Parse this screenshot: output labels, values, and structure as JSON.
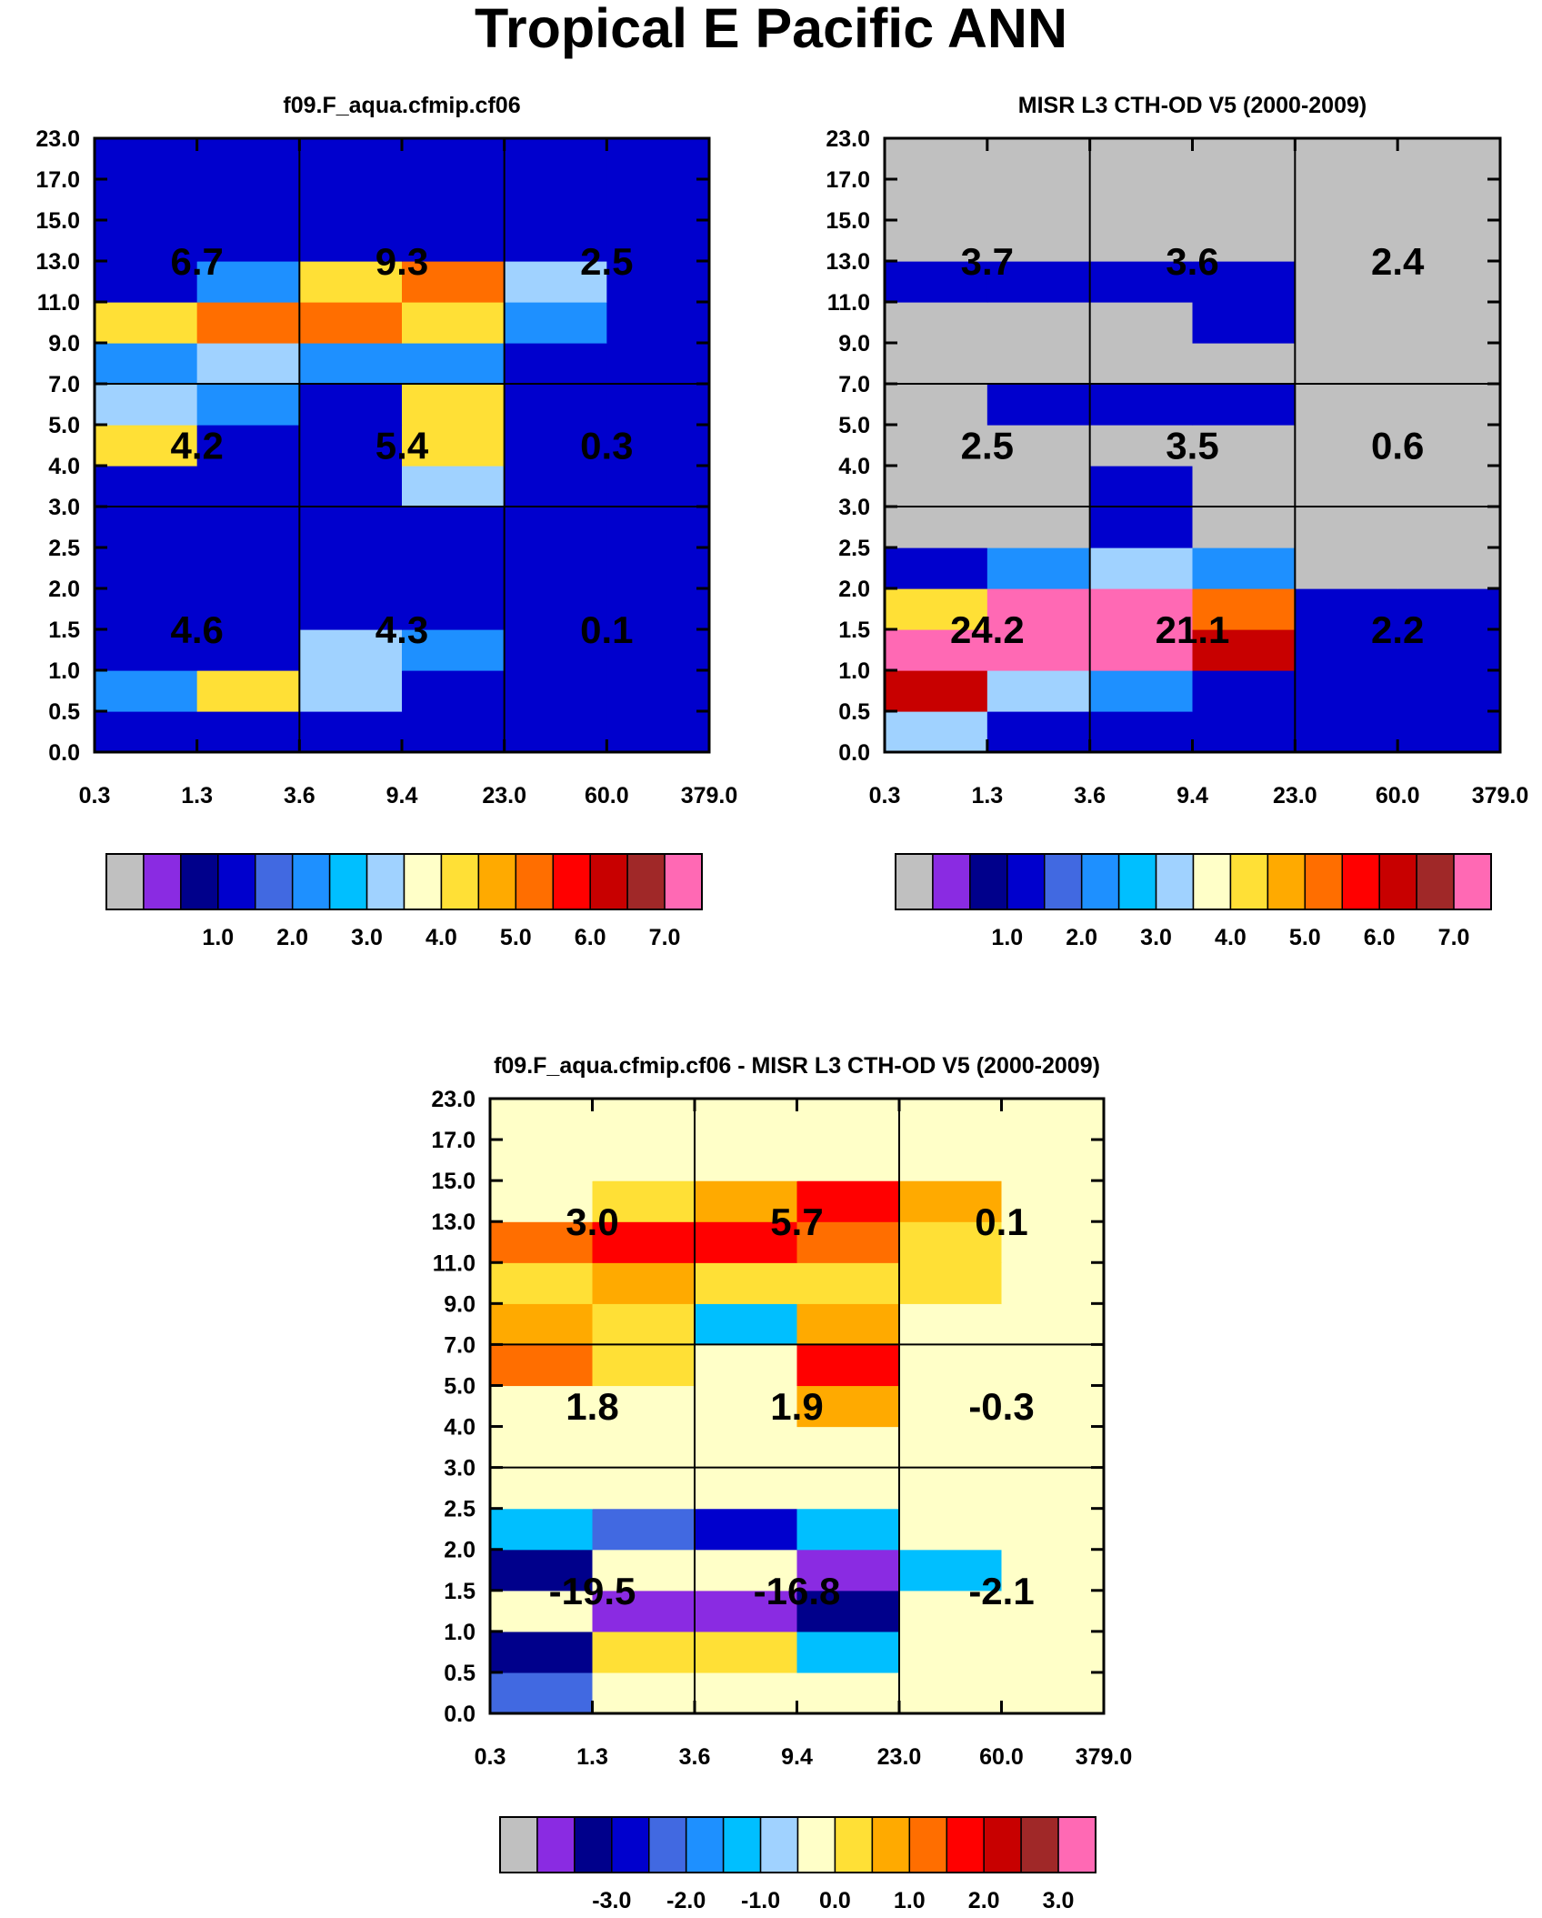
{
  "title": "Tropical E Pacific ANN",
  "chart_data": [
    {
      "type": "heatmap",
      "title": "f09.F_aqua.cfmip.cf06",
      "xlabel": "",
      "ylabel": "",
      "x_tick_labels": [
        "0.3",
        "1.3",
        "3.6",
        "9.4",
        "23.0",
        "60.0",
        "379.0"
      ],
      "y_tick_labels": [
        "0.0",
        "0.5",
        "1.0",
        "1.5",
        "2.0",
        "2.5",
        "3.0",
        "4.0",
        "5.0",
        "7.0",
        "9.0",
        "11.0",
        "13.0",
        "15.0",
        "17.0",
        "23.0"
      ],
      "rows_bottom_to_top": [
        [
          1,
          1,
          1,
          1,
          1,
          1
        ],
        [
          2,
          4,
          3,
          1,
          1,
          1
        ],
        [
          1,
          1,
          3,
          2,
          1,
          1
        ],
        [
          1,
          1,
          1,
          1,
          1,
          1
        ],
        [
          1,
          1,
          1,
          1,
          1,
          1
        ],
        [
          1,
          1,
          1,
          1,
          1,
          1
        ],
        [
          1,
          1,
          1,
          3,
          1,
          1
        ],
        [
          4,
          1,
          1,
          4,
          1,
          1
        ],
        [
          3,
          2,
          1,
          4,
          1,
          1
        ],
        [
          2,
          3,
          2,
          2,
          1,
          1
        ],
        [
          4,
          5,
          5,
          4,
          2,
          1
        ],
        [
          1,
          2,
          4,
          5,
          3,
          1
        ],
        [
          1,
          1,
          1,
          1,
          1,
          1
        ],
        [
          1,
          1,
          1,
          1,
          1,
          1
        ],
        [
          1,
          1,
          1,
          1,
          1,
          1
        ]
      ],
      "group_labels": [
        [
          "4.6",
          "4.3",
          "0.1"
        ],
        [
          "4.2",
          "5.4",
          "0.3"
        ],
        [
          "6.7",
          "9.3",
          "2.5"
        ]
      ],
      "colorbar": {
        "colors": [
          "#c0c0c0",
          "#8a2be2",
          "#00008b",
          "#0000cd",
          "#4169e1",
          "#1e90ff",
          "#00bfff",
          "#a0d2ff",
          "#ffffc8",
          "#ffe036",
          "#ffaa00",
          "#ff6e00",
          "#ff0000",
          "#c80000",
          "#a02828",
          "#ff69b4"
        ],
        "tick_labels": [
          "1.0",
          "2.0",
          "3.0",
          "4.0",
          "5.0",
          "6.0",
          "7.0"
        ]
      }
    },
    {
      "type": "heatmap",
      "title": "MISR L3 CTH-OD V5 (2000-2009)",
      "xlabel": "",
      "ylabel": "",
      "x_tick_labels": [
        "0.3",
        "1.3",
        "3.6",
        "9.4",
        "23.0",
        "60.0",
        "379.0"
      ],
      "y_tick_labels": [
        "0.0",
        "0.5",
        "1.0",
        "1.5",
        "2.0",
        "2.5",
        "3.0",
        "4.0",
        "5.0",
        "7.0",
        "9.0",
        "11.0",
        "13.0",
        "15.0",
        "17.0",
        "23.0"
      ],
      "rows_bottom_to_top": [
        [
          3,
          1,
          1,
          1,
          1,
          1
        ],
        [
          6,
          3,
          2,
          1,
          1,
          1
        ],
        [
          8,
          7,
          8,
          6,
          1,
          1
        ],
        [
          4,
          7,
          9,
          5,
          1,
          1
        ],
        [
          1,
          2,
          3,
          2,
          0,
          0
        ],
        [
          0,
          0,
          1,
          0,
          0,
          0
        ],
        [
          0,
          0,
          1,
          0,
          0,
          0
        ],
        [
          0,
          0,
          0,
          0,
          0,
          0
        ],
        [
          0,
          1,
          1,
          1,
          0,
          0
        ],
        [
          0,
          0,
          0,
          0,
          0,
          0
        ],
        [
          0,
          0,
          0,
          1,
          0,
          0
        ],
        [
          1,
          1,
          1,
          1,
          0,
          0
        ],
        [
          0,
          0,
          0,
          0,
          0,
          0
        ],
        [
          0,
          0,
          0,
          0,
          0,
          0
        ],
        [
          0,
          0,
          0,
          0,
          0,
          0
        ]
      ],
      "group_labels": [
        [
          "24.2",
          "21.1",
          "2.2"
        ],
        [
          "2.5",
          "3.5",
          "0.6"
        ],
        [
          "3.7",
          "3.6",
          "2.4"
        ]
      ],
      "colorbar": {
        "colors": [
          "#c0c0c0",
          "#8a2be2",
          "#00008b",
          "#0000cd",
          "#4169e1",
          "#1e90ff",
          "#00bfff",
          "#a0d2ff",
          "#ffffc8",
          "#ffe036",
          "#ffaa00",
          "#ff6e00",
          "#ff0000",
          "#c80000",
          "#a02828",
          "#ff69b4"
        ],
        "tick_labels": [
          "1.0",
          "2.0",
          "3.0",
          "4.0",
          "5.0",
          "6.0",
          "7.0"
        ]
      }
    },
    {
      "type": "heatmap",
      "title": "f09.F_aqua.cfmip.cf06 - MISR L3 CTH-OD V5 (2000-2009)",
      "xlabel": "",
      "ylabel": "",
      "x_tick_labels": [
        "0.3",
        "1.3",
        "3.6",
        "9.4",
        "23.0",
        "60.0",
        "379.0"
      ],
      "y_tick_labels": [
        "0.0",
        "0.5",
        "1.0",
        "1.5",
        "2.0",
        "2.5",
        "3.0",
        "4.0",
        "5.0",
        "7.0",
        "9.0",
        "11.0",
        "13.0",
        "15.0",
        "17.0",
        "23.0"
      ],
      "rows_bottom_to_top": [
        [
          -2,
          0,
          0,
          0,
          0,
          0
        ],
        [
          -3,
          0.5,
          0.5,
          -1,
          0,
          0
        ],
        [
          0,
          -4,
          -4,
          -3,
          0,
          0
        ],
        [
          -3,
          0,
          0,
          -4,
          -1,
          0
        ],
        [
          -1,
          -2,
          -2.5,
          -1,
          0,
          0
        ],
        [
          0,
          0,
          0,
          0,
          0,
          0
        ],
        [
          0,
          0,
          0,
          0,
          0,
          0
        ],
        [
          0,
          0,
          0,
          1,
          0,
          0
        ],
        [
          1.5,
          0.5,
          0,
          2,
          0,
          0
        ],
        [
          1,
          0.5,
          -1,
          1,
          0,
          0
        ],
        [
          0.5,
          1,
          0.5,
          0.5,
          0.5,
          0
        ],
        [
          1.5,
          2,
          2,
          1.5,
          0.5,
          0
        ],
        [
          0,
          0.5,
          1,
          2,
          1,
          0
        ],
        [
          0,
          0,
          0,
          0,
          0,
          0
        ],
        [
          0,
          0,
          0,
          0,
          0,
          0
        ]
      ],
      "group_labels": [
        [
          "-19.5",
          "-16.8",
          "-2.1"
        ],
        [
          "1.8",
          "1.9",
          "-0.3"
        ],
        [
          "3.0",
          "5.7",
          "0.1"
        ]
      ],
      "colorbar": {
        "colors": [
          "#c0c0c0",
          "#8a2be2",
          "#00008b",
          "#0000cd",
          "#4169e1",
          "#1e90ff",
          "#00bfff",
          "#a0d2ff",
          "#ffffc8",
          "#ffe036",
          "#ffaa00",
          "#ff6e00",
          "#ff0000",
          "#c80000",
          "#a02828",
          "#ff69b4"
        ],
        "tick_labels": [
          "-3.0",
          "-2.0",
          "-1.0",
          "0.0",
          "1.0",
          "2.0",
          "3.0"
        ]
      }
    }
  ]
}
